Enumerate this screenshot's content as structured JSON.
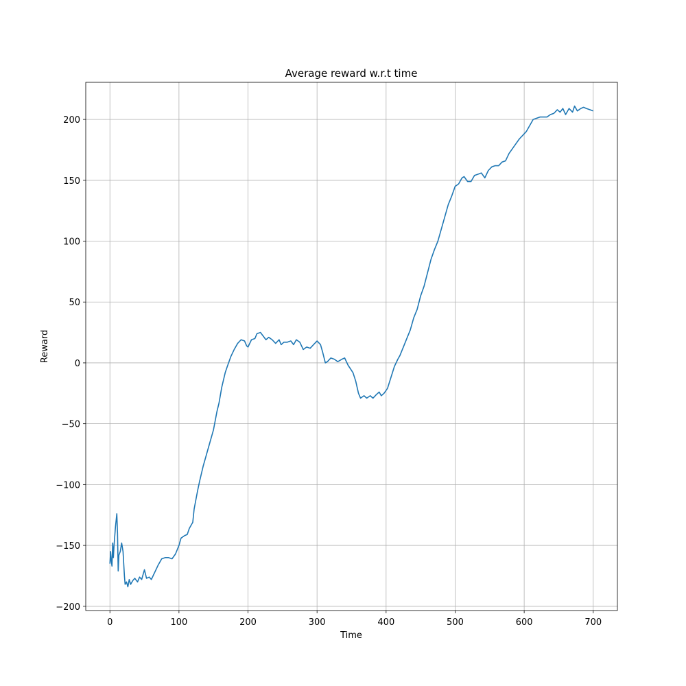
{
  "chart_data": {
    "type": "line",
    "title": "Average reward w.r.t time",
    "x_label": "Time",
    "y_label": "Reward",
    "x": [
      0,
      1,
      2,
      3,
      4,
      5,
      6,
      8,
      10,
      11,
      12,
      13,
      15,
      17,
      19,
      21,
      22,
      24,
      26,
      28,
      30,
      33,
      36,
      40,
      43,
      46,
      50,
      53,
      57,
      60,
      65,
      70,
      75,
      80,
      85,
      90,
      95,
      100,
      103,
      108,
      112,
      115,
      120,
      122,
      127,
      130,
      135,
      140,
      145,
      150,
      155,
      158,
      162,
      167,
      170,
      175,
      180,
      185,
      190,
      195,
      198,
      200,
      205,
      210,
      213,
      218,
      222,
      226,
      230,
      235,
      240,
      245,
      248,
      252,
      257,
      262,
      266,
      270,
      275,
      280,
      285,
      290,
      295,
      300,
      305,
      308,
      312,
      315,
      320,
      325,
      330,
      336,
      340,
      345,
      352,
      356,
      360,
      363,
      368,
      372,
      377,
      381,
      386,
      390,
      393,
      397,
      402,
      407,
      412,
      417,
      420,
      425,
      430,
      435,
      440,
      445,
      450,
      455,
      460,
      465,
      470,
      475,
      480,
      485,
      490,
      495,
      500,
      505,
      510,
      513,
      518,
      523,
      528,
      533,
      538,
      543,
      548,
      553,
      558,
      563,
      568,
      573,
      578,
      583,
      588,
      593,
      598,
      603,
      608,
      613,
      618,
      623,
      628,
      633,
      638,
      643,
      648,
      652,
      656,
      660,
      665,
      670,
      673,
      677,
      682,
      686,
      690,
      695,
      700
    ],
    "series": [
      {
        "name": "Reward",
        "color": "#1f77b4",
        "values": [
          -165,
          -155,
          -163,
          -167,
          -148,
          -160,
          -150,
          -135,
          -124,
          -140,
          -171,
          -158,
          -155,
          -148,
          -155,
          -175,
          -182,
          -180,
          -184,
          -178,
          -182,
          -179,
          -177,
          -180,
          -176,
          -178,
          -170,
          -177,
          -176,
          -178,
          -172,
          -166,
          -161,
          -160,
          -160,
          -161,
          -157,
          -150,
          -144,
          -142,
          -141,
          -136,
          -131,
          -120,
          -105,
          -97,
          -85,
          -75,
          -65,
          -55,
          -40,
          -33,
          -20,
          -8,
          -3,
          5,
          11,
          16,
          19,
          18,
          14,
          13,
          19,
          20,
          24,
          25,
          22,
          19,
          21,
          19,
          16,
          19,
          15,
          17,
          17,
          18,
          15,
          19,
          17,
          11,
          13,
          12,
          15,
          18,
          15,
          9,
          0,
          1,
          4,
          3,
          1,
          3,
          4,
          -2,
          -8,
          -15,
          -25,
          -29,
          -27,
          -29,
          -27,
          -29,
          -26,
          -24,
          -27,
          -25,
          -21,
          -12,
          -3,
          3,
          6,
          13,
          20,
          27,
          37,
          44,
          55,
          63,
          74,
          85,
          93,
          100,
          110,
          120,
          130,
          137,
          145,
          147,
          152,
          153,
          149,
          149,
          154,
          155,
          156,
          152,
          158,
          161,
          162,
          162,
          165,
          166,
          172,
          176,
          180,
          184,
          187,
          190,
          195,
          200,
          201,
          202,
          202,
          202,
          204,
          205,
          208,
          206,
          209,
          204,
          209,
          206,
          211,
          207,
          209,
          210,
          209,
          208,
          207
        ]
      }
    ],
    "xlim": [
      -35,
      735
    ],
    "ylim": [
      -203.5,
      230.5
    ],
    "xticks": [
      0,
      100,
      200,
      300,
      400,
      500,
      600,
      700
    ],
    "yticks": [
      {
        "value": -200,
        "label": "−200"
      },
      {
        "value": -150,
        "label": "−150"
      },
      {
        "value": -100,
        "label": "−100"
      },
      {
        "value": -50,
        "label": "−50"
      },
      0,
      50,
      100,
      150,
      200
    ],
    "grid": true
  }
}
